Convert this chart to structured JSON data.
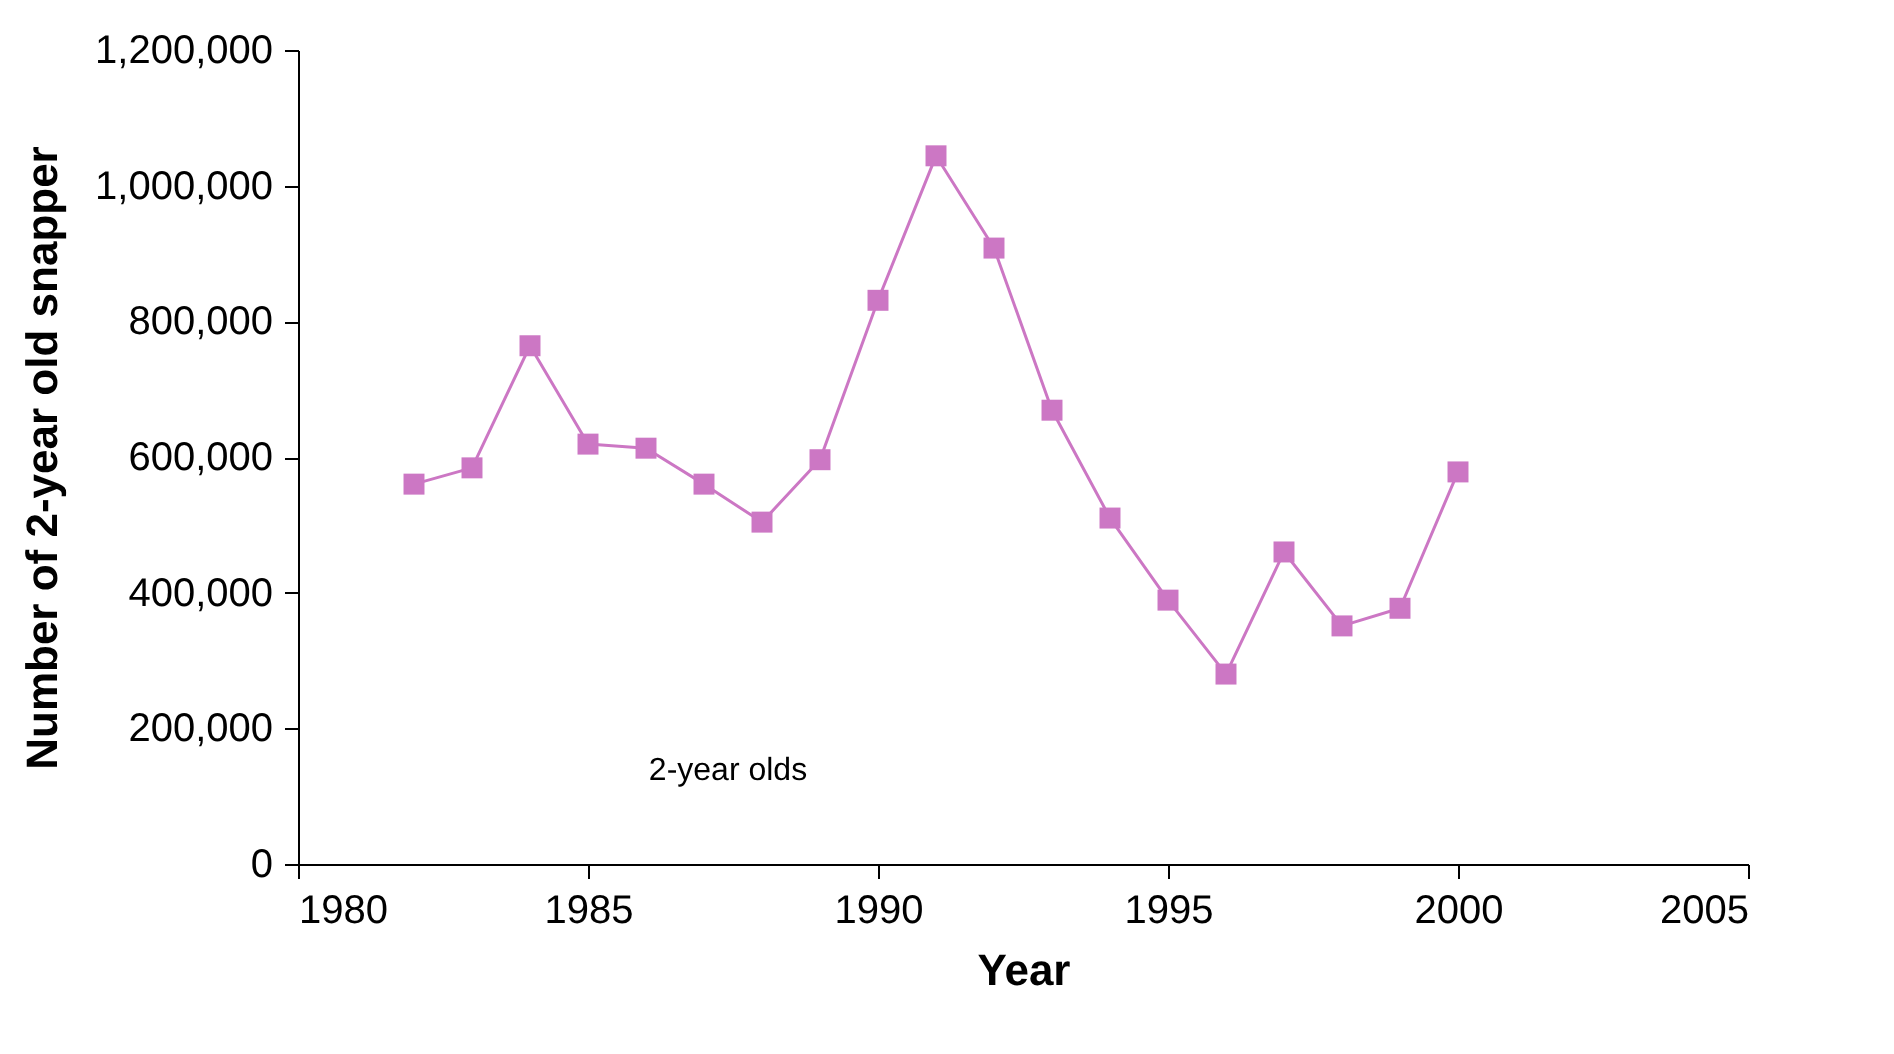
{
  "chart_data": {
    "type": "line",
    "xlabel": "Year",
    "ylabel": "Number of 2-year old snapper",
    "x": [
      1982,
      1983,
      1984,
      1985,
      1986,
      1987,
      1988,
      1989,
      1990,
      1991,
      1992,
      1993,
      1994,
      1995,
      1996,
      1997,
      1998,
      1999,
      2000
    ],
    "series": [
      {
        "color": "#cc77c4",
        "values": [
          560000,
          584000,
          764000,
          619000,
          613000,
          560000,
          504000,
          596000,
          831000,
          1044000,
          908000,
          669000,
          510000,
          389000,
          280000,
          460000,
          351000,
          377000,
          578000
        ]
      }
    ],
    "xlim": [
      1980,
      2005
    ],
    "xticks": [
      1980,
      1985,
      1990,
      1995,
      2000,
      2005
    ],
    "ylim": [
      0,
      1200000
    ],
    "yticks": [
      0,
      {
        "value": 200000,
        "label": "200,000"
      },
      {
        "value": 400000,
        "label": "400,000"
      },
      {
        "value": 600000,
        "label": "600,000"
      },
      {
        "value": 800000,
        "label": "800,000"
      },
      {
        "value": 1000000,
        "label": "1,000,000"
      },
      {
        "value": 1200000,
        "label": "1,200,000"
      }
    ],
    "annotations": [
      "2-year olds"
    ],
    "marker": "square",
    "line_style": "solid",
    "grid": false
  }
}
